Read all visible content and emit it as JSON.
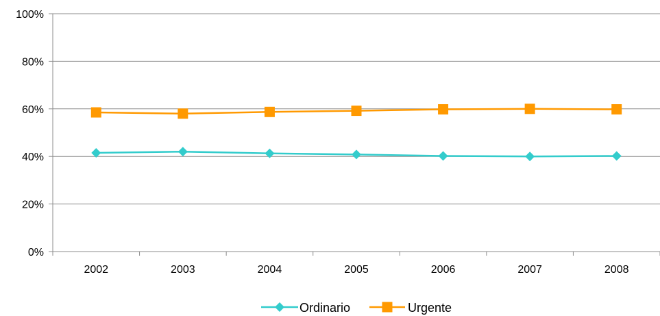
{
  "chart_data": {
    "type": "line",
    "categories": [
      "2002",
      "2003",
      "2004",
      "2005",
      "2006",
      "2007",
      "2008"
    ],
    "series": [
      {
        "name": "Ordinario",
        "values": [
          41.5,
          42.0,
          41.3,
          40.8,
          40.2,
          40.0,
          40.2
        ],
        "color": "#33CCCC",
        "marker": "diamond"
      },
      {
        "name": "Urgente",
        "values": [
          58.5,
          58.0,
          58.7,
          59.2,
          59.8,
          60.0,
          59.8
        ],
        "color": "#FF9900",
        "marker": "square"
      }
    ],
    "ylim": [
      0,
      100
    ],
    "yticks": [
      0,
      20,
      40,
      60,
      80,
      100
    ],
    "ytick_labels": [
      "0%",
      "20%",
      "40%",
      "60%",
      "80%",
      "100%"
    ],
    "grid": "horizontal",
    "legend_position": "bottom",
    "title": "",
    "xlabel": "",
    "ylabel": ""
  }
}
